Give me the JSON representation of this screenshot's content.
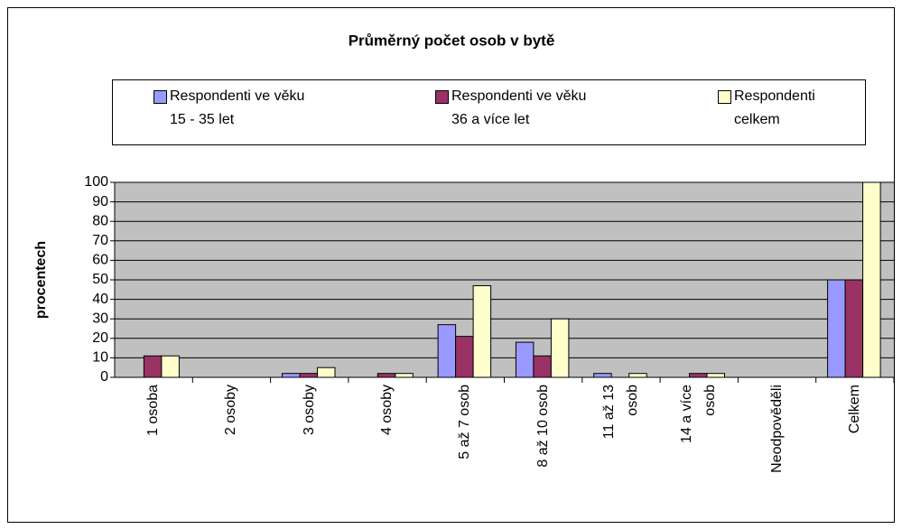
{
  "chart_data": {
    "type": "bar",
    "title": "Průměrný počet osob v bytě",
    "y_label": "procentech",
    "categories": [
      "1 osoba",
      "2 osoby",
      "3 osoby",
      "4 osoby",
      "5 až 7 osob",
      "8 až 10 osob",
      "11 až 13\nosob",
      "14 a více\nosob",
      "Neodpověděli",
      "Celkem"
    ],
    "series": [
      {
        "name": "Respondenti ve věku\n15 - 35 let",
        "color": "#9999ff",
        "values": [
          0,
          0,
          2,
          0,
          27,
          18,
          2,
          0,
          0,
          50
        ]
      },
      {
        "name": "Respondenti ve věku\n36 a více let",
        "color": "#993366",
        "values": [
          11,
          0,
          2,
          2,
          21,
          11,
          0,
          2,
          0,
          50
        ]
      },
      {
        "name": "Respondenti\ncelkem",
        "color": "#ffffcc",
        "values": [
          11,
          0,
          5,
          2,
          47,
          30,
          2,
          2,
          0,
          100
        ]
      }
    ],
    "ylim": [
      0,
      100
    ],
    "yticks": [
      0,
      10,
      20,
      30,
      40,
      50,
      60,
      70,
      80,
      90,
      100
    ],
    "grid": true,
    "plot_background": "#c0c0c0",
    "legend": "top"
  }
}
